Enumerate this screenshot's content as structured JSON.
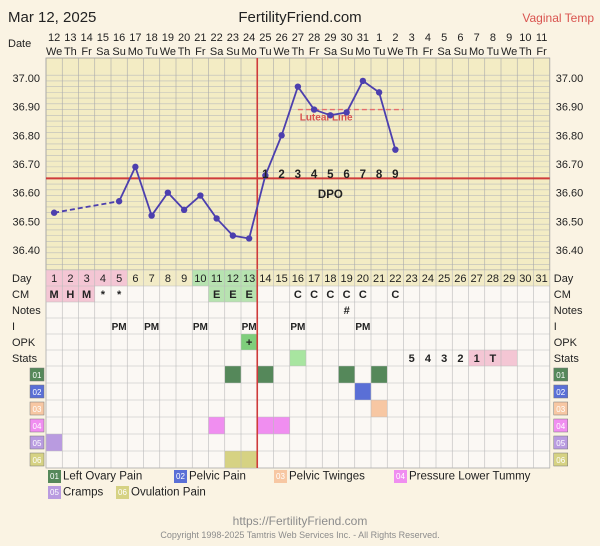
{
  "header": {
    "date": "Mar 12, 2025",
    "site": "FertilityFriend.com",
    "method": "Vaginal Temp"
  },
  "labels": {
    "date_row": "Date",
    "day_row": "Day",
    "cm_row": "CM",
    "notes_row": "Notes",
    "intercourse_row": "I",
    "opk_row": "OPK",
    "stats_row": "Stats",
    "luteal_line": "Luteal Line",
    "dpo": "DPO"
  },
  "chart_data": {
    "type": "line",
    "title": "",
    "ylabel": "",
    "ylim": [
      36.33,
      37.07
    ],
    "yticks": [
      "37.00",
      "36.90",
      "36.80",
      "36.70",
      "36.60",
      "36.50",
      "36.40"
    ],
    "dates": [
      "12",
      "13",
      "14",
      "15",
      "16",
      "17",
      "18",
      "19",
      "20",
      "21",
      "22",
      "23",
      "24",
      "25",
      "26",
      "27",
      "28",
      "29",
      "30",
      "31",
      "1",
      "2",
      "3",
      "4",
      "5",
      "6",
      "7",
      "8",
      "9",
      "10",
      "11"
    ],
    "weekdays": [
      "We",
      "Th",
      "Fr",
      "Sa",
      "Su",
      "Mo",
      "Tu",
      "We",
      "Th",
      "Fr",
      "Sa",
      "Su",
      "Mo",
      "Tu",
      "We",
      "Th",
      "Fr",
      "Sa",
      "Su",
      "Mo",
      "Tu",
      "We",
      "Th",
      "Fr",
      "Sa",
      "Su",
      "Mo",
      "Tu",
      "We",
      "Th",
      "Fr"
    ],
    "cycle_days": [
      "1",
      "2",
      "3",
      "4",
      "5",
      "6",
      "7",
      "8",
      "9",
      "10",
      "11",
      "12",
      "13",
      "14",
      "15",
      "16",
      "17",
      "18",
      "19",
      "20",
      "21",
      "22",
      "23",
      "24",
      "25",
      "26",
      "27",
      "28",
      "29",
      "30",
      "31"
    ],
    "temps": [
      36.53,
      null,
      null,
      null,
      36.57,
      36.69,
      36.52,
      36.6,
      36.54,
      36.59,
      36.51,
      36.45,
      36.44,
      36.66,
      36.8,
      36.97,
      36.89,
      36.87,
      36.88,
      36.99,
      36.95,
      36.75,
      null,
      null,
      null,
      null,
      null,
      null,
      null,
      null,
      null
    ],
    "coverline": 36.65,
    "luteal_line": 36.89,
    "ovulation_day": 13,
    "dpo_numbers": [
      "1",
      "2",
      "3",
      "4",
      "5",
      "6",
      "7",
      "8",
      "9"
    ],
    "cm": [
      "M",
      "H",
      "M",
      "*",
      "*",
      "",
      "",
      "",
      "",
      "",
      "E",
      "E",
      "E",
      "",
      "",
      "C",
      "C",
      "C",
      "C",
      "C",
      "",
      "C",
      "",
      "",
      "",
      "",
      "",
      "",
      "",
      "",
      ""
    ],
    "notes": [
      "",
      "",
      "",
      "",
      "",
      "",
      "",
      "",
      "",
      "",
      "",
      "",
      "",
      "",
      "",
      "",
      "",
      "",
      "#",
      "",
      "",
      "",
      "",
      "",
      "",
      "",
      "",
      "",
      "",
      "",
      ""
    ],
    "intercourse": [
      "",
      "",
      "",
      "",
      "PM",
      "",
      "PM",
      "",
      "",
      "PM",
      "",
      "",
      "PM",
      "",
      "",
      "PM",
      "",
      "",
      "",
      "PM",
      "",
      "",
      "",
      "",
      "",
      "",
      "",
      "",
      "",
      "",
      ""
    ],
    "opk": [
      "",
      "",
      "",
      "",
      "",
      "",
      "",
      "",
      "",
      "",
      "",
      "",
      "+",
      "",
      "",
      "",
      "",
      "",
      "",
      "",
      "",
      "",
      "",
      "",
      "",
      "",
      "",
      "",
      "",
      "",
      ""
    ],
    "stats": [
      "",
      "",
      "",
      "",
      "",
      "",
      "",
      "",
      "",
      "",
      "",
      "",
      "",
      "",
      "",
      "",
      "",
      "",
      "",
      "",
      "",
      "",
      "5",
      "4",
      "3",
      "2",
      "1",
      "T",
      "",
      "",
      ""
    ],
    "symptoms": [
      {
        "code": "01",
        "name": "Left Ovary Pain",
        "color": "#55885a",
        "days": [
          12,
          14,
          19,
          21
        ]
      },
      {
        "code": "02",
        "name": "Pelvic Pain",
        "color": "#5a6fd6",
        "days": [
          20
        ]
      },
      {
        "code": "03",
        "name": "Pelvic Twinges",
        "color": "#f7c7a3",
        "days": [
          21
        ]
      },
      {
        "code": "04",
        "name": "Pressure Lower Tummy",
        "color": "#f08ef0",
        "days": [
          11,
          14,
          15
        ]
      },
      {
        "code": "05",
        "name": "Cramps",
        "color": "#b99be0",
        "days": [
          1
        ]
      },
      {
        "code": "06",
        "name": "Ovulation Pain",
        "color": "#d6d283",
        "days": [
          12,
          13
        ]
      }
    ]
  },
  "footer": {
    "url": "https://FertilityFriend.com",
    "copyright": "Copyright 1998-2025 Tamtris Web Services Inc. - All Rights Reserved."
  }
}
